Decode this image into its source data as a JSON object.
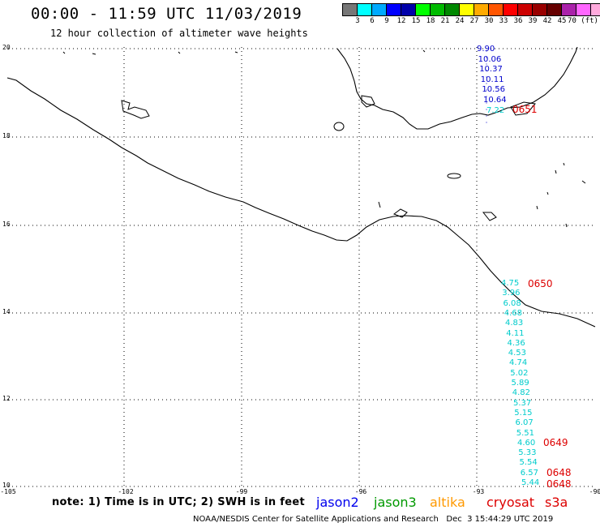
{
  "header": {
    "title": "00:00 - 11:59 UTC 11/03/2019",
    "subtitle": "12 hour collection of altimeter wave heights"
  },
  "colorbar": {
    "colors": [
      "#777777",
      "#00ffff",
      "#00aaff",
      "#0000ff",
      "#0000aa",
      "#00ff00",
      "#00bb00",
      "#008800",
      "#ffff00",
      "#ffaa00",
      "#ff5500",
      "#ff0000",
      "#cc0000",
      "#990000",
      "#660000",
      "#aa22aa",
      "#ff66ff",
      "#ffaadd",
      "#000000"
    ],
    "labels": [
      "3",
      "6",
      "9",
      "12",
      "15",
      "18",
      "21",
      "24",
      "27",
      "30",
      "33",
      "36",
      "39",
      "42",
      "45",
      "70 (ft)"
    ]
  },
  "axes": {
    "lat_labels": [
      "20",
      "18",
      "16",
      "14",
      "12",
      "10"
    ],
    "lon_labels": [
      "-105",
      "-102",
      "-99",
      "-96",
      "-93",
      "-90"
    ]
  },
  "passes": [
    {
      "satellite": "jason2",
      "color": "#0000cc",
      "time": "0651",
      "time_color": "#dd0000",
      "values": [
        "9.90",
        "10.06",
        "10.37",
        "10.11",
        "10.56",
        "10.64"
      ]
    },
    {
      "satellite": "partial",
      "color": "#00cccc",
      "values": [
        "7.22"
      ]
    },
    {
      "satellite": "s3a",
      "color": "#00cccc",
      "time_labels": [
        "0650",
        "0649",
        "0648",
        "0648"
      ],
      "time_color": "#dd0000",
      "values": [
        "4.75",
        "3.96",
        "6.08",
        "4.68",
        "4.83",
        "4.11",
        "4.36",
        "4.53",
        "4.74",
        "5.02",
        "5.89",
        "4.82",
        "5.37",
        "5.15",
        "6.07",
        "5.51",
        "4.60",
        "5.33",
        "5.54",
        "6.57",
        "5.44"
      ]
    }
  ],
  "note": "note: 1) Time is in UTC; 2) SWH is in feet",
  "legend": [
    {
      "label": "jason2",
      "color": "#0000ee"
    },
    {
      "label": "jason3",
      "color": "#009900"
    },
    {
      "label": "altika",
      "color": "#ff9900"
    },
    {
      "label": "cryosat",
      "color": "#dd0000"
    },
    {
      "label": "s3a",
      "color": "#dd0000"
    }
  ],
  "footer": "NOAA/NESDIS Center for Satellite Applications and Research   Dec  3 15:44:29 UTC 2019"
}
